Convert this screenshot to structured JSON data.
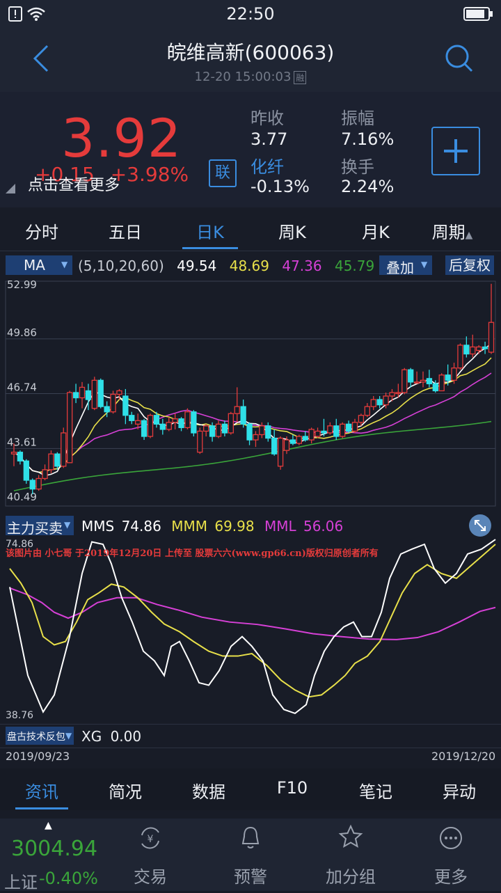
{
  "status_bar": {
    "time": "22:50"
  },
  "header": {
    "title": "皖维高新(600063)",
    "datetime": "12-20 15:00:03",
    "badge": "融"
  },
  "quote": {
    "price": "3.92",
    "change": "+0.15",
    "change_pct": "+3.98%",
    "more_tip": "点击查看更多",
    "lian_label": "联",
    "prev_close_label": "昨收",
    "prev_close": "3.77",
    "amplitude_label": "振幅",
    "amplitude": "7.16%",
    "sector_label": "化纤",
    "sector_change": "-0.13%",
    "turnover_label": "换手",
    "turnover": "2.24%"
  },
  "period_tabs": [
    {
      "label": "分时"
    },
    {
      "label": "五日"
    },
    {
      "label": "日K"
    },
    {
      "label": "周K"
    },
    {
      "label": "月K"
    },
    {
      "label": "周期"
    }
  ],
  "active_period": "日K",
  "ma_legend": {
    "select": "MA",
    "params": "(5,10,20,60)",
    "ma5": "49.54",
    "ma10": "48.69",
    "ma20": "47.36",
    "ma60": "45.79",
    "overlay_button": "叠加",
    "adjust_button": "后复权",
    "colors": {
      "ma5": "#ffffff",
      "ma10": "#e8e04a",
      "ma20": "#d640d6",
      "ma60": "#3aa53a",
      "up": "#e53b3b",
      "down": "#2fe0e8"
    }
  },
  "chart_data": [
    {
      "type": "candlestick",
      "y_ticks": [
        "52.99",
        "49.86",
        "46.74",
        "43.61",
        "40.49"
      ],
      "ylim": [
        40.49,
        52.99
      ],
      "x_start": "2019/09/23",
      "x_end": "2019/12/20",
      "candles": [
        [
          43.3,
          43.9,
          42.6,
          43.4
        ],
        [
          43.4,
          43.5,
          42.7,
          42.9
        ],
        [
          42.9,
          43.0,
          41.6,
          41.8
        ],
        [
          41.8,
          41.9,
          41.0,
          41.3
        ],
        [
          41.3,
          42.1,
          41.2,
          41.9
        ],
        [
          41.9,
          42.7,
          41.8,
          42.4
        ],
        [
          42.4,
          43.5,
          42.2,
          43.3
        ],
        [
          43.3,
          43.4,
          42.4,
          42.6
        ],
        [
          42.6,
          44.8,
          42.5,
          44.5
        ],
        [
          42.8,
          46.9,
          42.8,
          46.8
        ],
        [
          46.8,
          47.3,
          46.2,
          46.5
        ],
        [
          46.5,
          47.4,
          45.9,
          47.1
        ],
        [
          46.9,
          47.3,
          45.8,
          46.4
        ],
        [
          45.9,
          47.7,
          45.8,
          47.5
        ],
        [
          47.5,
          47.6,
          45.9,
          46.0
        ],
        [
          46.0,
          46.3,
          45.4,
          45.7
        ],
        [
          45.7,
          46.9,
          45.6,
          46.7
        ],
        [
          46.7,
          47.0,
          46.4,
          46.9
        ],
        [
          46.6,
          47.0,
          45.0,
          45.5
        ],
        [
          45.5,
          45.7,
          45.0,
          45.2
        ],
        [
          45.0,
          45.6,
          44.7,
          45.2
        ],
        [
          45.2,
          45.3,
          44.1,
          44.3
        ],
        [
          44.3,
          45.6,
          44.2,
          45.5
        ],
        [
          45.5,
          45.7,
          44.8,
          45.0
        ],
        [
          45.0,
          45.3,
          44.4,
          44.7
        ],
        [
          44.7,
          45.4,
          44.6,
          45.1
        ],
        [
          45.1,
          45.6,
          44.7,
          45.3
        ],
        [
          45.3,
          45.4,
          44.6,
          44.8
        ],
        [
          44.8,
          45.9,
          44.7,
          45.7
        ],
        [
          45.7,
          45.8,
          44.3,
          44.5
        ],
        [
          43.4,
          44.8,
          43.3,
          44.6
        ],
        [
          44.6,
          45.0,
          44.3,
          44.9
        ],
        [
          44.9,
          45.1,
          44.0,
          44.3
        ],
        [
          44.3,
          45.2,
          44.2,
          45.0
        ],
        [
          45.0,
          45.2,
          44.3,
          44.5
        ],
        [
          44.5,
          45.7,
          44.4,
          45.6
        ],
        [
          45.6,
          47.1,
          45.1,
          46.0
        ],
        [
          46.0,
          46.4,
          44.8,
          45.0
        ],
        [
          45.0,
          45.1,
          43.8,
          44.1
        ],
        [
          44.1,
          44.6,
          43.7,
          44.4
        ],
        [
          44.4,
          45.1,
          44.2,
          44.9
        ],
        [
          44.9,
          45.1,
          44.0,
          44.2
        ],
        [
          44.2,
          44.7,
          43.2,
          43.3
        ],
        [
          42.6,
          44.3,
          42.4,
          44.2
        ],
        [
          43.5,
          44.3,
          43.3,
          44.1
        ],
        [
          44.1,
          44.4,
          43.8,
          43.9
        ],
        [
          43.9,
          44.4,
          43.8,
          44.3
        ],
        [
          44.3,
          44.6,
          44.0,
          44.1
        ],
        [
          44.1,
          44.8,
          43.9,
          44.7
        ],
        [
          44.3,
          44.8,
          44.2,
          44.6
        ],
        [
          44.6,
          45.3,
          44.3,
          44.5
        ],
        [
          44.5,
          45.1,
          44.4,
          44.9
        ],
        [
          44.9,
          45.3,
          44.1,
          44.3
        ],
        [
          44.3,
          45.1,
          44.2,
          45.0
        ],
        [
          45.0,
          45.2,
          44.5,
          44.6
        ],
        [
          44.6,
          45.3,
          44.5,
          45.1
        ],
        [
          45.1,
          45.6,
          44.9,
          45.5
        ],
        [
          45.5,
          46.2,
          45.4,
          46.0
        ],
        [
          46.0,
          46.6,
          45.8,
          46.4
        ],
        [
          46.4,
          46.6,
          45.9,
          46.1
        ],
        [
          46.1,
          46.8,
          45.9,
          46.6
        ],
        [
          46.6,
          47.0,
          46.3,
          46.8
        ],
        [
          46.8,
          47.3,
          46.5,
          46.8
        ],
        [
          46.8,
          48.2,
          46.7,
          48.1
        ],
        [
          48.1,
          48.2,
          47.1,
          47.4
        ],
        [
          47.4,
          48.0,
          47.3,
          47.4
        ],
        [
          47.4,
          48.0,
          47.1,
          47.5
        ],
        [
          47.6,
          48.1,
          47.1,
          47.3
        ],
        [
          47.3,
          47.5,
          46.8,
          46.9
        ],
        [
          46.9,
          47.9,
          46.9,
          47.8
        ],
        [
          47.8,
          48.4,
          47.2,
          47.5
        ],
        [
          47.5,
          48.5,
          47.3,
          48.2
        ],
        [
          48.2,
          49.6,
          48.1,
          49.5
        ],
        [
          49.5,
          50.0,
          48.8,
          49.0
        ],
        [
          49.0,
          50.1,
          48.8,
          49.4
        ],
        [
          49.2,
          49.5,
          49.0,
          49.4
        ],
        [
          49.4,
          49.7,
          49.0,
          49.3
        ],
        [
          49.1,
          53.0,
          49.0,
          50.8
        ]
      ]
    },
    {
      "type": "line",
      "title": "主力买卖",
      "y_ticks": [
        "74.86",
        "38.76"
      ],
      "ylim": [
        38.76,
        74.86
      ],
      "series": [
        {
          "name": "MMS",
          "value_label": "74.86"
        },
        {
          "name": "MMM",
          "value_label": "69.98"
        },
        {
          "name": "MML",
          "value_label": "56.06"
        }
      ]
    }
  ],
  "indicator": {
    "select": "主力买卖",
    "mms_label": "MMS",
    "mms": "74.86",
    "mmm_label": "MMM",
    "mmm": "69.98",
    "mml_label": "MML",
    "mml": "56.06",
    "ymax": "74.86",
    "ymin": "38.76",
    "watermark": "该图片由 小七哥 于2019年12月20日 上传至 股票六六(www.gp66.cn)版权归原创者所有",
    "second_select": "盘古技术反包",
    "xg_label": "XG",
    "xg_value": "0.00",
    "date_start": "2019/09/23",
    "date_end": "2019/12/20"
  },
  "info_tabs": [
    {
      "label": "资讯"
    },
    {
      "label": "简况"
    },
    {
      "label": "数据"
    },
    {
      "label": "F10"
    },
    {
      "label": "笔记"
    },
    {
      "label": "异动"
    }
  ],
  "nav": {
    "index_value": "3004.94",
    "index_name": "上证",
    "index_change": "-0.40%",
    "items": [
      {
        "label": "交易",
        "icon": "yuan-exchange-icon"
      },
      {
        "label": "预警",
        "icon": "bell-icon"
      },
      {
        "label": "加分组",
        "icon": "star-icon"
      },
      {
        "label": "更多",
        "icon": "more-icon"
      }
    ]
  }
}
